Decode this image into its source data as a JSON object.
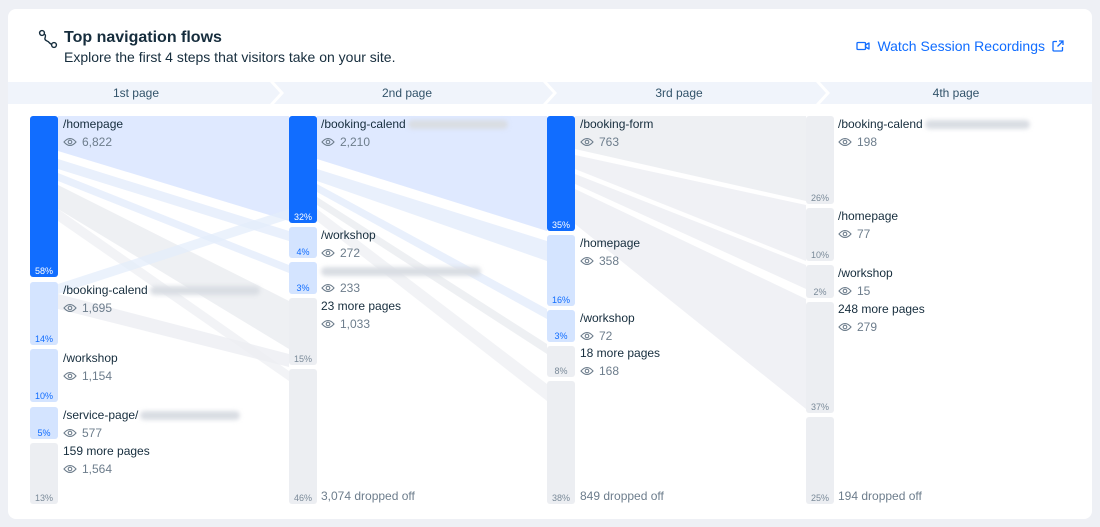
{
  "header": {
    "title": "Top navigation flows",
    "subtitle": "Explore the first 4 steps that visitors take on your site.",
    "link_label": "Watch Session Recordings",
    "icon": "flow-path-icon"
  },
  "steps": [
    "1st page",
    "2nd page",
    "3rd page",
    "4th page"
  ],
  "colors": {
    "accent": "#116dff",
    "light": "#d4e4ff",
    "grey": "#eceef2"
  },
  "columns": [
    {
      "nodes": [
        {
          "name": "/homepage",
          "views": "6,822",
          "pct": "58%"
        },
        {
          "name": "/booking-calend",
          "views": "1,695",
          "pct": "14%"
        },
        {
          "name": "/workshop",
          "views": "1,154",
          "pct": "10%"
        },
        {
          "name": "/service-page/",
          "views": "577",
          "pct": "5%"
        },
        {
          "name": "159 more pages",
          "views": "1,564",
          "pct": "13%"
        }
      ]
    },
    {
      "nodes": [
        {
          "name": "/booking-calend",
          "views": "2,210",
          "pct": "32%"
        },
        {
          "name": "/workshop",
          "views": "272",
          "pct": "4%"
        },
        {
          "name": "",
          "views": "233",
          "pct": "3%"
        },
        {
          "name": "23 more pages",
          "views": "1,033",
          "pct": "15%"
        }
      ],
      "dropped": {
        "label": "3,074 dropped off",
        "pct": "46%"
      }
    },
    {
      "nodes": [
        {
          "name": "/booking-form",
          "views": "763",
          "pct": "35%"
        },
        {
          "name": "/homepage",
          "views": "358",
          "pct": "16%"
        },
        {
          "name": "/workshop",
          "views": "72",
          "pct": "3%"
        },
        {
          "name": "18 more pages",
          "views": "168",
          "pct": "8%"
        }
      ],
      "dropped": {
        "label": "849 dropped off",
        "pct": "38%"
      }
    },
    {
      "nodes": [
        {
          "name": "/booking-calend",
          "views": "198",
          "pct": "26%"
        },
        {
          "name": "/homepage",
          "views": "77",
          "pct": "10%"
        },
        {
          "name": "/workshop",
          "views": "15",
          "pct": "2%"
        },
        {
          "name": "248 more pages",
          "views": "279",
          "pct": "37%"
        }
      ],
      "dropped": {
        "label": "194 dropped off",
        "pct": "25%"
      }
    }
  ]
}
